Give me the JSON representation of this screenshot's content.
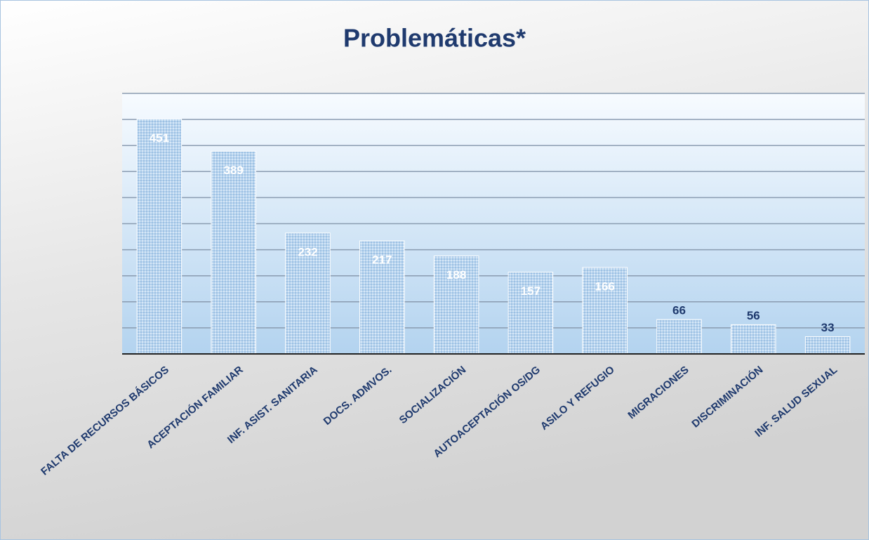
{
  "chart_data": {
    "type": "bar",
    "title": "Problemáticas*",
    "categories": [
      "FALTA DE RECURSOS BÁSICOS",
      "ACEPTACIÓN FAMILIAR",
      "INF. ASIST. SANITARIA",
      "DOCS. ADMVOS.",
      "SOCIALIZACIÓN",
      "AUTOACEPTACIÓN OS/DG",
      "ASILO Y REFUGIO",
      "MIGRACIONES",
      "DISCRIMINACIÓN",
      "INF. SALUD SEXUAL"
    ],
    "values": [
      451,
      389,
      232,
      217,
      188,
      157,
      166,
      66,
      56,
      33
    ],
    "color": "#a9cbea",
    "ylim": [
      0,
      500
    ],
    "yticks": [
      0,
      50,
      100,
      150,
      200,
      250,
      300,
      350,
      400,
      450,
      500
    ],
    "grid": true
  }
}
